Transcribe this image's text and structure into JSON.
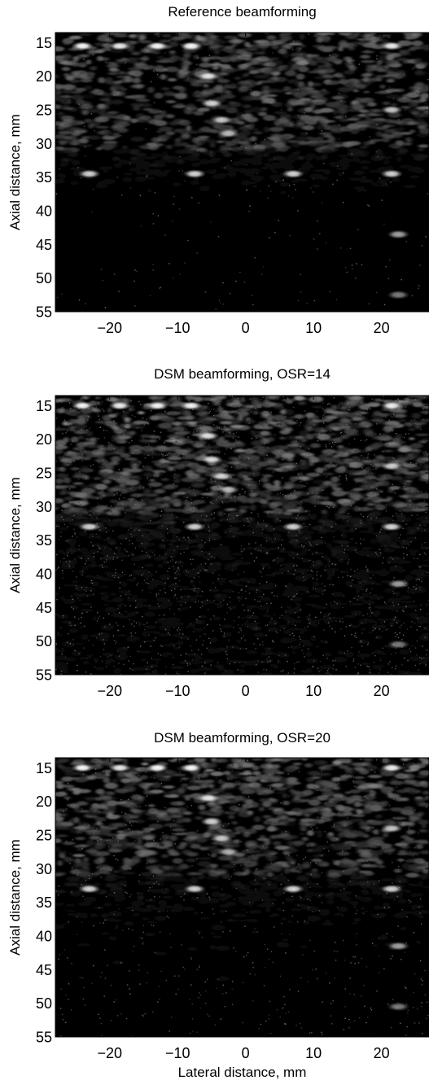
{
  "chart_data": [
    {
      "type": "heatmap",
      "title": "Reference beamforming",
      "xlabel": "",
      "ylabel": "Axial distance, mm",
      "xlim": [
        -28,
        27
      ],
      "ylim": [
        55,
        13.5
      ],
      "xticks": [
        -20,
        -10,
        0,
        10,
        20
      ],
      "xtick_labels": [
        "−20",
        "−10",
        "0",
        "10",
        "20"
      ],
      "yticks": [
        15,
        20,
        25,
        30,
        35,
        40,
        45,
        50,
        55
      ],
      "ytick_labels": [
        "15",
        "20",
        "25",
        "30",
        "35",
        "40",
        "45",
        "50",
        "55"
      ],
      "colormap": "gray",
      "noise_level": 0.03,
      "bright_reflectors": [
        {
          "x": -24,
          "y": 15.5,
          "intensity": 1.0
        },
        {
          "x": -18.5,
          "y": 15.5,
          "intensity": 0.95
        },
        {
          "x": -13,
          "y": 15.5,
          "intensity": 1.0
        },
        {
          "x": -8,
          "y": 15.5,
          "intensity": 1.0
        },
        {
          "x": 21.5,
          "y": 15.5,
          "intensity": 0.95
        },
        {
          "x": -5.5,
          "y": 20,
          "intensity": 0.9
        },
        {
          "x": -5,
          "y": 24,
          "intensity": 0.85
        },
        {
          "x": -3.5,
          "y": 26.5,
          "intensity": 0.8
        },
        {
          "x": -2.5,
          "y": 28.5,
          "intensity": 0.7
        },
        {
          "x": 21.5,
          "y": 25,
          "intensity": 0.8
        },
        {
          "x": -23,
          "y": 34.5,
          "intensity": 0.85
        },
        {
          "x": -7.5,
          "y": 34.5,
          "intensity": 0.85
        },
        {
          "x": 7,
          "y": 34.5,
          "intensity": 0.85
        },
        {
          "x": 21.5,
          "y": 34.5,
          "intensity": 0.85
        },
        {
          "x": 22.5,
          "y": 43.5,
          "intensity": 0.65
        },
        {
          "x": 22.5,
          "y": 52.5,
          "intensity": 0.5
        }
      ]
    },
    {
      "type": "heatmap",
      "title": "DSM beamforming, OSR=14",
      "xlabel": "",
      "ylabel": "Axial distance, mm",
      "xlim": [
        -28,
        27
      ],
      "ylim": [
        55,
        13.5
      ],
      "xticks": [
        -20,
        -10,
        0,
        10,
        20
      ],
      "xtick_labels": [
        "−20",
        "−10",
        "0",
        "10",
        "20"
      ],
      "yticks": [
        15,
        20,
        25,
        30,
        35,
        40,
        45,
        50,
        55
      ],
      "ytick_labels": [
        "15",
        "20",
        "25",
        "30",
        "35",
        "40",
        "45",
        "50",
        "55"
      ],
      "colormap": "gray",
      "noise_level": 0.22,
      "bright_reflectors": [
        {
          "x": -24,
          "y": 15,
          "intensity": 1.0
        },
        {
          "x": -18.5,
          "y": 15,
          "intensity": 0.95
        },
        {
          "x": -13,
          "y": 15,
          "intensity": 1.0
        },
        {
          "x": -8,
          "y": 15,
          "intensity": 1.0
        },
        {
          "x": 21.5,
          "y": 15,
          "intensity": 0.95
        },
        {
          "x": -5.5,
          "y": 19.5,
          "intensity": 0.9
        },
        {
          "x": -5,
          "y": 23,
          "intensity": 0.85
        },
        {
          "x": -3.5,
          "y": 25.5,
          "intensity": 0.8
        },
        {
          "x": -2.5,
          "y": 27.5,
          "intensity": 0.7
        },
        {
          "x": 21.5,
          "y": 24,
          "intensity": 0.8
        },
        {
          "x": -23,
          "y": 33,
          "intensity": 0.85
        },
        {
          "x": -7.5,
          "y": 33,
          "intensity": 0.85
        },
        {
          "x": 7,
          "y": 33,
          "intensity": 0.85
        },
        {
          "x": 21.5,
          "y": 33,
          "intensity": 0.85
        },
        {
          "x": 22.5,
          "y": 41.5,
          "intensity": 0.65
        },
        {
          "x": 22.5,
          "y": 50.5,
          "intensity": 0.5
        }
      ]
    },
    {
      "type": "heatmap",
      "title": "DSM beamforming, OSR=20",
      "xlabel": "Lateral distance, mm",
      "ylabel": "Axial distance, mm",
      "xlim": [
        -28,
        27
      ],
      "ylim": [
        55,
        13.5
      ],
      "xticks": [
        -20,
        -10,
        0,
        10,
        20
      ],
      "xtick_labels": [
        "−20",
        "−10",
        "0",
        "10",
        "20"
      ],
      "yticks": [
        15,
        20,
        25,
        30,
        35,
        40,
        45,
        50,
        55
      ],
      "ytick_labels": [
        "15",
        "20",
        "25",
        "30",
        "35",
        "40",
        "45",
        "50",
        "55"
      ],
      "colormap": "gray",
      "noise_level": 0.08,
      "bright_reflectors": [
        {
          "x": -24,
          "y": 15,
          "intensity": 1.0
        },
        {
          "x": -18.5,
          "y": 15,
          "intensity": 0.95
        },
        {
          "x": -13,
          "y": 15,
          "intensity": 1.0
        },
        {
          "x": -8,
          "y": 15,
          "intensity": 1.0
        },
        {
          "x": 21.5,
          "y": 15,
          "intensity": 0.95
        },
        {
          "x": -5.5,
          "y": 19.5,
          "intensity": 0.9
        },
        {
          "x": -5,
          "y": 23,
          "intensity": 0.85
        },
        {
          "x": -3.5,
          "y": 25.5,
          "intensity": 0.8
        },
        {
          "x": -2.5,
          "y": 27.5,
          "intensity": 0.7
        },
        {
          "x": 21.5,
          "y": 24,
          "intensity": 0.8
        },
        {
          "x": -23,
          "y": 33,
          "intensity": 0.85
        },
        {
          "x": -7.5,
          "y": 33,
          "intensity": 0.85
        },
        {
          "x": 7,
          "y": 33,
          "intensity": 0.85
        },
        {
          "x": 21.5,
          "y": 33,
          "intensity": 0.85
        },
        {
          "x": 22.5,
          "y": 41.5,
          "intensity": 0.65
        },
        {
          "x": 22.5,
          "y": 50.5,
          "intensity": 0.5
        }
      ]
    }
  ]
}
